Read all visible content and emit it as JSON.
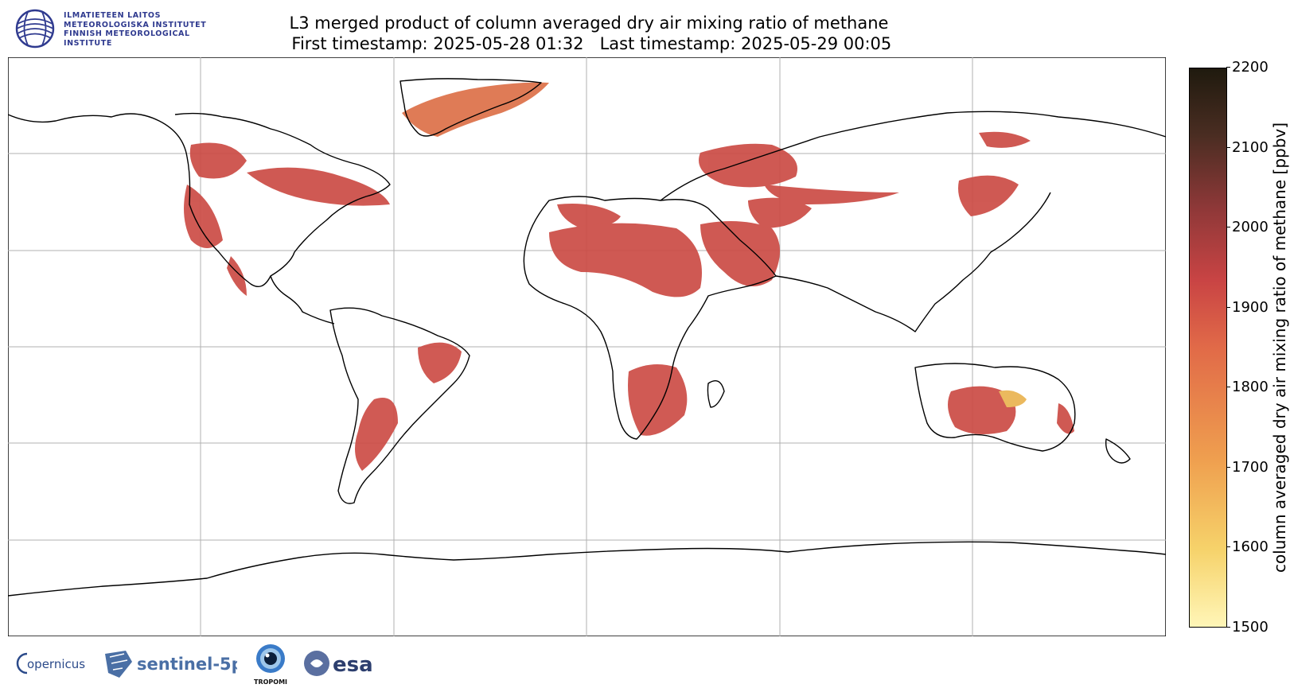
{
  "header": {
    "org_lines": [
      "ILMATIETEEN LAITOS",
      "METEOROLOGISKA INSTITUTET",
      "FINNISH METEOROLOGICAL INSTITUTE"
    ],
    "title_line1": "L3 merged product of column averaged dry air mixing ratio of methane",
    "title_line2": " First timestamp: 2025-05-28 01:32   Last timestamp: 2025-05-29 00:05"
  },
  "colorbar": {
    "label": "column averaged dry air mixing ratio of methane [ppbv]",
    "range": [
      1500,
      2200
    ],
    "ticks": [
      "2200",
      "2100",
      "2000",
      "1900",
      "1800",
      "1700",
      "1600",
      "1500"
    ],
    "colors": [
      "#fff6b8",
      "#f6d26a",
      "#ef9f4f",
      "#e16a48",
      "#c94444",
      "#8e3838",
      "#4a2d22",
      "#1f1a0e"
    ]
  },
  "map": {
    "projection": "plate-carree",
    "ocean_color": "#ffffff",
    "data_color": "#cc4c45",
    "grid": true
  },
  "logos": {
    "copernicus": "opernicus",
    "sentinel": "sentinel-5p",
    "tropomi": "TROPOMI",
    "esa": "esa"
  }
}
